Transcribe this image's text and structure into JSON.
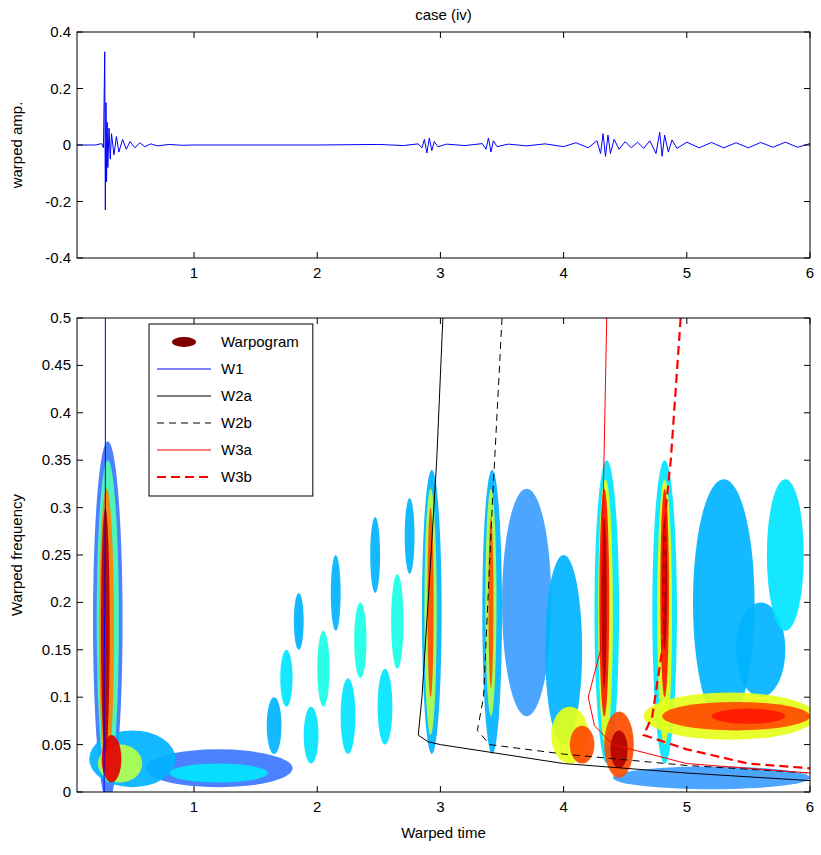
{
  "chart_data": [
    {
      "type": "line",
      "title": "case (iv)",
      "ylabel": "warped amp.",
      "xlim": [
        0.05,
        6
      ],
      "xticks": [
        1,
        2,
        3,
        4,
        5,
        6
      ],
      "ylim": [
        -0.4,
        0.4
      ],
      "yticks": [
        -0.4,
        -0.2,
        0,
        0.2,
        0.4
      ],
      "series": [
        {
          "color": "#0000ff",
          "line_style": "solid",
          "x": [
            0.05,
            0.2,
            0.25,
            0.265,
            0.275,
            0.28,
            0.285,
            0.29,
            0.295,
            0.3,
            0.31,
            0.32,
            0.33,
            0.35,
            0.37,
            0.39,
            0.42,
            0.45,
            0.48,
            0.52,
            0.56,
            0.6,
            0.65,
            0.7,
            0.8,
            0.9,
            1.0,
            2.0,
            2.5,
            2.7,
            2.82,
            2.85,
            2.87,
            2.89,
            2.91,
            2.93,
            2.95,
            2.98,
            3.05,
            3.2,
            3.34,
            3.37,
            3.39,
            3.41,
            3.43,
            3.46,
            3.55,
            3.7,
            3.85,
            4.0,
            4.1,
            4.2,
            4.27,
            4.3,
            4.32,
            4.34,
            4.36,
            4.38,
            4.41,
            4.45,
            4.5,
            4.55,
            4.6,
            4.65,
            4.7,
            4.75,
            4.78,
            4.8,
            4.82,
            4.85,
            4.88,
            4.92,
            5.0,
            5.1,
            5.2,
            5.3,
            5.4,
            5.5,
            5.6,
            5.7,
            5.8,
            5.9,
            6.0
          ],
          "values": [
            0,
            0,
            0.005,
            -0.01,
            0.33,
            -0.23,
            0.15,
            -0.13,
            0.08,
            -0.08,
            0.06,
            -0.05,
            0.04,
            -0.035,
            0.03,
            -0.025,
            0.02,
            -0.015,
            0.012,
            -0.01,
            0.008,
            -0.006,
            0.004,
            -0.003,
            0.002,
            -0.001,
            0,
            0,
            0.002,
            -0.002,
            0.004,
            -0.01,
            0.02,
            -0.028,
            0.025,
            -0.02,
            0.012,
            -0.006,
            0.003,
            -0.002,
            0.005,
            -0.015,
            0.025,
            -0.025,
            0.015,
            -0.006,
            0.003,
            -0.003,
            0.004,
            -0.006,
            0.008,
            -0.01,
            0.015,
            -0.03,
            0.04,
            -0.04,
            0.035,
            -0.03,
            0.02,
            -0.015,
            0.012,
            -0.01,
            0.01,
            -0.012,
            0.015,
            -0.03,
            0.045,
            -0.04,
            0.035,
            -0.025,
            0.018,
            -0.012,
            0.01,
            -0.01,
            0.009,
            -0.01,
            0.008,
            -0.01,
            0.009,
            -0.008,
            0.01,
            -0.008,
            0.005
          ]
        }
      ]
    },
    {
      "type": "heatmap",
      "xlabel": "Warped time",
      "ylabel": "Warped frequency",
      "xlim": [
        0.05,
        6
      ],
      "xticks": [
        1,
        2,
        3,
        4,
        5,
        6
      ],
      "ylim": [
        0,
        0.5
      ],
      "yticks": [
        0,
        0.05,
        0.1,
        0.15,
        0.2,
        0.25,
        0.3,
        0.35,
        0.4,
        0.45,
        0.5
      ],
      "legend": "upper left",
      "warpogram": {
        "name": "Warpogram",
        "color": "#800000",
        "color_range": [
          0,
          1
        ],
        "cells": [
          {
            "t": 0.3,
            "f": 0.18,
            "dt": 0.12,
            "df": 0.19,
            "value": 0.2
          },
          {
            "t": 0.3,
            "f": 0.18,
            "dt": 0.09,
            "df": 0.17,
            "value": 0.45
          },
          {
            "t": 0.29,
            "f": 0.17,
            "dt": 0.06,
            "df": 0.15,
            "value": 0.75
          },
          {
            "t": 0.28,
            "f": 0.17,
            "dt": 0.035,
            "df": 0.13,
            "value": 0.95
          },
          {
            "t": 0.5,
            "f": 0.035,
            "dt": 0.35,
            "df": 0.03,
            "value": 0.3
          },
          {
            "t": 0.4,
            "f": 0.03,
            "dt": 0.18,
            "df": 0.02,
            "value": 0.55
          },
          {
            "t": 0.33,
            "f": 0.035,
            "dt": 0.08,
            "df": 0.025,
            "value": 0.9
          },
          {
            "t": 1.2,
            "f": 0.025,
            "dt": 0.6,
            "df": 0.02,
            "value": 0.2
          },
          {
            "t": 1.2,
            "f": 0.02,
            "dt": 0.4,
            "df": 0.01,
            "value": 0.35
          },
          {
            "t": 1.65,
            "f": 0.07,
            "dt": 0.06,
            "df": 0.03,
            "value": 0.3
          },
          {
            "t": 1.75,
            "f": 0.12,
            "dt": 0.05,
            "df": 0.03,
            "value": 0.35
          },
          {
            "t": 1.85,
            "f": 0.18,
            "dt": 0.04,
            "df": 0.03,
            "value": 0.3
          },
          {
            "t": 1.95,
            "f": 0.06,
            "dt": 0.06,
            "df": 0.03,
            "value": 0.35
          },
          {
            "t": 2.05,
            "f": 0.13,
            "dt": 0.05,
            "df": 0.04,
            "value": 0.4
          },
          {
            "t": 2.15,
            "f": 0.21,
            "dt": 0.04,
            "df": 0.04,
            "value": 0.3
          },
          {
            "t": 2.25,
            "f": 0.08,
            "dt": 0.06,
            "df": 0.04,
            "value": 0.35
          },
          {
            "t": 2.35,
            "f": 0.16,
            "dt": 0.05,
            "df": 0.04,
            "value": 0.4
          },
          {
            "t": 2.47,
            "f": 0.25,
            "dt": 0.04,
            "df": 0.04,
            "value": 0.3
          },
          {
            "t": 2.55,
            "f": 0.09,
            "dt": 0.06,
            "df": 0.04,
            "value": 0.35
          },
          {
            "t": 2.65,
            "f": 0.18,
            "dt": 0.05,
            "df": 0.05,
            "value": 0.4
          },
          {
            "t": 2.75,
            "f": 0.27,
            "dt": 0.04,
            "df": 0.04,
            "value": 0.3
          },
          {
            "t": 3.7,
            "f": 0.2,
            "dt": 0.2,
            "df": 0.12,
            "value": 0.25
          },
          {
            "t": 4.0,
            "f": 0.15,
            "dt": 0.15,
            "df": 0.1,
            "value": 0.3
          },
          {
            "t": 5.3,
            "f": 0.2,
            "dt": 0.25,
            "df": 0.13,
            "value": 0.3
          },
          {
            "t": 5.8,
            "f": 0.25,
            "dt": 0.15,
            "df": 0.08,
            "value": 0.35
          },
          {
            "t": 5.6,
            "f": 0.15,
            "dt": 0.2,
            "df": 0.05,
            "value": 0.3
          },
          {
            "t": 5.2,
            "f": 0.015,
            "dt": 0.8,
            "df": 0.012,
            "value": 0.25
          },
          {
            "t": 2.93,
            "f": 0.19,
            "dt": 0.08,
            "df": 0.15,
            "value": 0.3
          },
          {
            "t": 2.92,
            "f": 0.19,
            "dt": 0.05,
            "df": 0.13,
            "value": 0.55
          },
          {
            "t": 2.92,
            "f": 0.2,
            "dt": 0.025,
            "df": 0.1,
            "value": 0.8
          },
          {
            "t": 3.42,
            "f": 0.19,
            "dt": 0.08,
            "df": 0.15,
            "value": 0.3
          },
          {
            "t": 3.41,
            "f": 0.2,
            "dt": 0.045,
            "df": 0.12,
            "value": 0.55
          },
          {
            "t": 3.41,
            "f": 0.2,
            "dt": 0.02,
            "df": 0.09,
            "value": 0.8
          },
          {
            "t": 4.35,
            "f": 0.19,
            "dt": 0.1,
            "df": 0.16,
            "value": 0.35
          },
          {
            "t": 4.34,
            "f": 0.19,
            "dt": 0.06,
            "df": 0.14,
            "value": 0.6
          },
          {
            "t": 4.33,
            "f": 0.2,
            "dt": 0.04,
            "df": 0.12,
            "value": 0.85
          },
          {
            "t": 4.33,
            "f": 0.2,
            "dt": 0.02,
            "df": 0.09,
            "value": 0.95
          },
          {
            "t": 4.82,
            "f": 0.19,
            "dt": 0.1,
            "df": 0.16,
            "value": 0.35
          },
          {
            "t": 4.82,
            "f": 0.19,
            "dt": 0.06,
            "df": 0.14,
            "value": 0.6
          },
          {
            "t": 4.82,
            "f": 0.21,
            "dt": 0.035,
            "df": 0.11,
            "value": 0.85
          },
          {
            "t": 4.82,
            "f": 0.22,
            "dt": 0.02,
            "df": 0.07,
            "value": 0.95
          },
          {
            "t": 4.05,
            "f": 0.06,
            "dt": 0.15,
            "df": 0.03,
            "value": 0.6
          },
          {
            "t": 4.15,
            "f": 0.05,
            "dt": 0.1,
            "df": 0.02,
            "value": 0.8
          },
          {
            "t": 4.45,
            "f": 0.05,
            "dt": 0.12,
            "df": 0.035,
            "value": 0.8
          },
          {
            "t": 4.45,
            "f": 0.045,
            "dt": 0.07,
            "df": 0.02,
            "value": 0.95
          },
          {
            "t": 5.35,
            "f": 0.08,
            "dt": 0.7,
            "df": 0.025,
            "value": 0.6
          },
          {
            "t": 5.4,
            "f": 0.08,
            "dt": 0.6,
            "df": 0.015,
            "value": 0.8
          },
          {
            "t": 5.5,
            "f": 0.08,
            "dt": 0.3,
            "df": 0.008,
            "value": 0.85
          }
        ]
      },
      "series": [
        {
          "name": "W1",
          "color": "#0000ff",
          "line_style": "solid",
          "x": [
            0.28,
            0.28,
            0.27,
            0.27
          ],
          "values": [
            0.5,
            0.3,
            0.1,
            0
          ]
        },
        {
          "name": "W2a",
          "color": "#000000",
          "line_style": "solid",
          "x": [
            3.02,
            2.97,
            2.9,
            2.85,
            2.82,
            2.9,
            3.0,
            3.5,
            4.0,
            5.0,
            6.0
          ],
          "values": [
            0.5,
            0.35,
            0.2,
            0.1,
            0.06,
            0.053,
            0.05,
            0.04,
            0.03,
            0.02,
            0.012
          ]
        },
        {
          "name": "W2b",
          "color": "#000000",
          "line_style": "dashed",
          "x": [
            3.5,
            3.42,
            3.35,
            3.3,
            3.4,
            4.0,
            5.0,
            6.0
          ],
          "values": [
            0.5,
            0.3,
            0.1,
            0.065,
            0.05,
            0.04,
            0.028,
            0.02
          ]
        },
        {
          "name": "W3a",
          "color": "#ff0000",
          "line_style": "solid",
          "x": [
            4.35,
            4.32,
            4.3,
            4.2,
            4.25,
            4.4,
            5.0,
            6.0
          ],
          "values": [
            0.5,
            0.3,
            0.15,
            0.1,
            0.07,
            0.05,
            0.03,
            0.02
          ]
        },
        {
          "name": "W3b",
          "color": "#ff0000",
          "line_style": "dashed",
          "x": [
            4.95,
            4.87,
            4.83,
            4.8,
            4.72,
            4.65,
            5.0,
            5.5,
            6.0
          ],
          "values": [
            0.5,
            0.35,
            0.3,
            0.15,
            0.08,
            0.06,
            0.045,
            0.03,
            0.025
          ]
        }
      ]
    }
  ]
}
